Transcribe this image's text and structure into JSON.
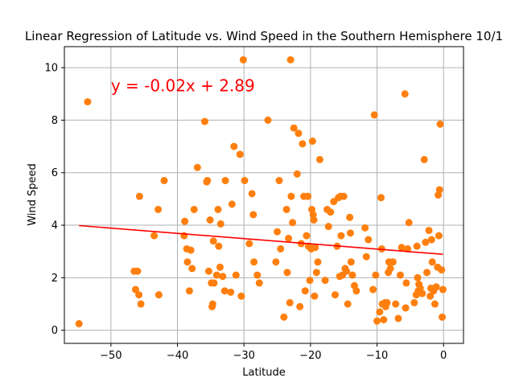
{
  "chart_data": {
    "type": "scatter",
    "title": "Linear Regression of Latitude vs. Wind Speed in the Southern Hemisphere 10/1",
    "xlabel": "Latitude",
    "ylabel": "Wind Speed",
    "xlim": [
      -57,
      3
    ],
    "ylim": [
      -0.5,
      10.8
    ],
    "xticks": [
      -50,
      -40,
      -30,
      -20,
      -10,
      0
    ],
    "yticks": [
      0,
      2,
      4,
      6,
      8,
      10
    ],
    "grid": true,
    "colors": {
      "points": "#ff7f0e",
      "regression": "#ff0000",
      "grid": "#b0b0b0"
    },
    "regression": {
      "slope": -0.02,
      "intercept": 2.89,
      "x_range": [
        -54.8,
        -0.1
      ],
      "equation": "y = -0.02x + 2.89",
      "equation_anchor": [
        -50,
        9.1
      ]
    },
    "points": [
      [
        -54.8,
        0.25
      ],
      [
        -53.5,
        8.7
      ],
      [
        -46.5,
        2.25
      ],
      [
        -46.3,
        1.55
      ],
      [
        -46.0,
        2.25
      ],
      [
        -45.8,
        1.35
      ],
      [
        -45.7,
        5.1
      ],
      [
        -45.5,
        1.0
      ],
      [
        -43.5,
        3.6
      ],
      [
        -42.9,
        4.6
      ],
      [
        -42.8,
        1.35
      ],
      [
        -42.0,
        5.7
      ],
      [
        -39.0,
        3.6
      ],
      [
        -38.9,
        4.15
      ],
      [
        -38.6,
        3.1
      ],
      [
        -38.5,
        2.6
      ],
      [
        -38.2,
        1.5
      ],
      [
        -38.0,
        3.05
      ],
      [
        -37.8,
        2.35
      ],
      [
        -37.5,
        4.6
      ],
      [
        -37.0,
        6.2
      ],
      [
        -35.9,
        7.95
      ],
      [
        -35.6,
        5.65
      ],
      [
        -35.5,
        5.7
      ],
      [
        -35.3,
        2.25
      ],
      [
        -35.1,
        4.2
      ],
      [
        -34.9,
        1.8
      ],
      [
        -34.8,
        0.9
      ],
      [
        -34.7,
        1.0
      ],
      [
        -34.6,
        3.4
      ],
      [
        -34.5,
        1.8
      ],
      [
        -34.1,
        2.1
      ],
      [
        -33.9,
        4.6
      ],
      [
        -33.8,
        3.2
      ],
      [
        -33.6,
        2.4
      ],
      [
        -33.5,
        4.05
      ],
      [
        -33.2,
        2.05
      ],
      [
        -32.9,
        1.5
      ],
      [
        -32.8,
        5.7
      ],
      [
        -32.0,
        1.45
      ],
      [
        -31.8,
        4.8
      ],
      [
        -31.5,
        7.0
      ],
      [
        -31.2,
        2.1
      ],
      [
        -30.6,
        6.7
      ],
      [
        -30.4,
        1.3
      ],
      [
        -30.1,
        10.3
      ],
      [
        -29.9,
        5.7
      ],
      [
        -29.2,
        3.3
      ],
      [
        -28.8,
        5.2
      ],
      [
        -28.6,
        4.4
      ],
      [
        -28.5,
        2.6
      ],
      [
        -28.0,
        2.1
      ],
      [
        -27.7,
        1.8
      ],
      [
        -26.4,
        8.0
      ],
      [
        -25.2,
        2.6
      ],
      [
        -25.0,
        3.75
      ],
      [
        -24.7,
        5.7
      ],
      [
        -24.5,
        3.1
      ],
      [
        -24.0,
        0.5
      ],
      [
        -23.6,
        4.6
      ],
      [
        -23.5,
        2.2
      ],
      [
        -23.3,
        3.5
      ],
      [
        -23.1,
        1.05
      ],
      [
        -23.0,
        10.3
      ],
      [
        -22.9,
        5.1
      ],
      [
        -22.7,
        4.1
      ],
      [
        -22.5,
        7.7
      ],
      [
        -22.0,
        5.95
      ],
      [
        -21.8,
        7.5
      ],
      [
        -21.6,
        0.9
      ],
      [
        -21.4,
        3.3
      ],
      [
        -21.2,
        7.1
      ],
      [
        -21.0,
        5.1
      ],
      [
        -20.8,
        1.5
      ],
      [
        -20.6,
        3.6
      ],
      [
        -20.4,
        5.1
      ],
      [
        -20.3,
        3.2
      ],
      [
        -20.1,
        1.9
      ],
      [
        -19.9,
        3.1
      ],
      [
        -19.8,
        4.6
      ],
      [
        -19.7,
        7.2
      ],
      [
        -19.6,
        4.4
      ],
      [
        -19.5,
        4.2
      ],
      [
        -19.4,
        1.3
      ],
      [
        -19.3,
        3.15
      ],
      [
        -19.1,
        2.2
      ],
      [
        -18.9,
        2.6
      ],
      [
        -18.6,
        6.5
      ],
      [
        -17.8,
        1.9
      ],
      [
        -17.5,
        4.6
      ],
      [
        -17.3,
        3.95
      ],
      [
        -17.0,
        4.5
      ],
      [
        -16.5,
        4.9
      ],
      [
        -16.3,
        1.35
      ],
      [
        -16.0,
        3.2
      ],
      [
        -15.8,
        5.05
      ],
      [
        -15.6,
        2.05
      ],
      [
        -15.5,
        5.1
      ],
      [
        -15.4,
        3.6
      ],
      [
        -15.2,
        2.1
      ],
      [
        -15.0,
        5.1
      ],
      [
        -14.8,
        2.35
      ],
      [
        -14.6,
        2.25
      ],
      [
        -14.4,
        1.0
      ],
      [
        -14.1,
        4.3
      ],
      [
        -14.0,
        3.7
      ],
      [
        -13.9,
        2.6
      ],
      [
        -13.7,
        2.1
      ],
      [
        -13.4,
        1.7
      ],
      [
        -13.1,
        1.5
      ],
      [
        -11.8,
        3.9
      ],
      [
        -11.6,
        2.8
      ],
      [
        -11.3,
        3.45
      ],
      [
        -10.6,
        1.55
      ],
      [
        -10.4,
        8.2
      ],
      [
        -10.2,
        2.1
      ],
      [
        -10.0,
        0.35
      ],
      [
        -9.6,
        0.7
      ],
      [
        -9.4,
        5.05
      ],
      [
        -9.3,
        3.1
      ],
      [
        -9.2,
        1.0
      ],
      [
        -9.0,
        0.4
      ],
      [
        -8.8,
        1.05
      ],
      [
        -8.7,
        0.9
      ],
      [
        -8.5,
        1.05
      ],
      [
        -8.3,
        2.2
      ],
      [
        -8.2,
        2.6
      ],
      [
        -8.0,
        2.35
      ],
      [
        -7.6,
        2.6
      ],
      [
        -7.2,
        1.0
      ],
      [
        -6.8,
        0.45
      ],
      [
        -6.5,
        2.1
      ],
      [
        -6.3,
        3.15
      ],
      [
        -5.8,
        9.0
      ],
      [
        -5.7,
        0.85
      ],
      [
        -5.6,
        1.8
      ],
      [
        -5.4,
        3.1
      ],
      [
        -5.2,
        4.1
      ],
      [
        -4.4,
        1.05
      ],
      [
        -4.1,
        1.35
      ],
      [
        -4.0,
        3.2
      ],
      [
        -3.9,
        2.0
      ],
      [
        -3.8,
        1.5
      ],
      [
        -3.7,
        1.75
      ],
      [
        -3.5,
        1.6
      ],
      [
        -3.2,
        1.4
      ],
      [
        -2.9,
        6.5
      ],
      [
        -2.7,
        3.35
      ],
      [
        -2.5,
        2.2
      ],
      [
        -2.2,
        3.8
      ],
      [
        -2.0,
        1.3
      ],
      [
        -1.9,
        1.6
      ],
      [
        -1.8,
        3.45
      ],
      [
        -1.7,
        2.6
      ],
      [
        -1.5,
        1.5
      ],
      [
        -1.3,
        1.0
      ],
      [
        -1.1,
        1.65
      ],
      [
        -0.9,
        2.4
      ],
      [
        -0.8,
        5.15
      ],
      [
        -0.7,
        3.6
      ],
      [
        -0.6,
        5.35
      ],
      [
        -0.5,
        7.85
      ],
      [
        -0.3,
        2.3
      ],
      [
        -0.2,
        0.5
      ],
      [
        -0.1,
        1.55
      ]
    ]
  }
}
